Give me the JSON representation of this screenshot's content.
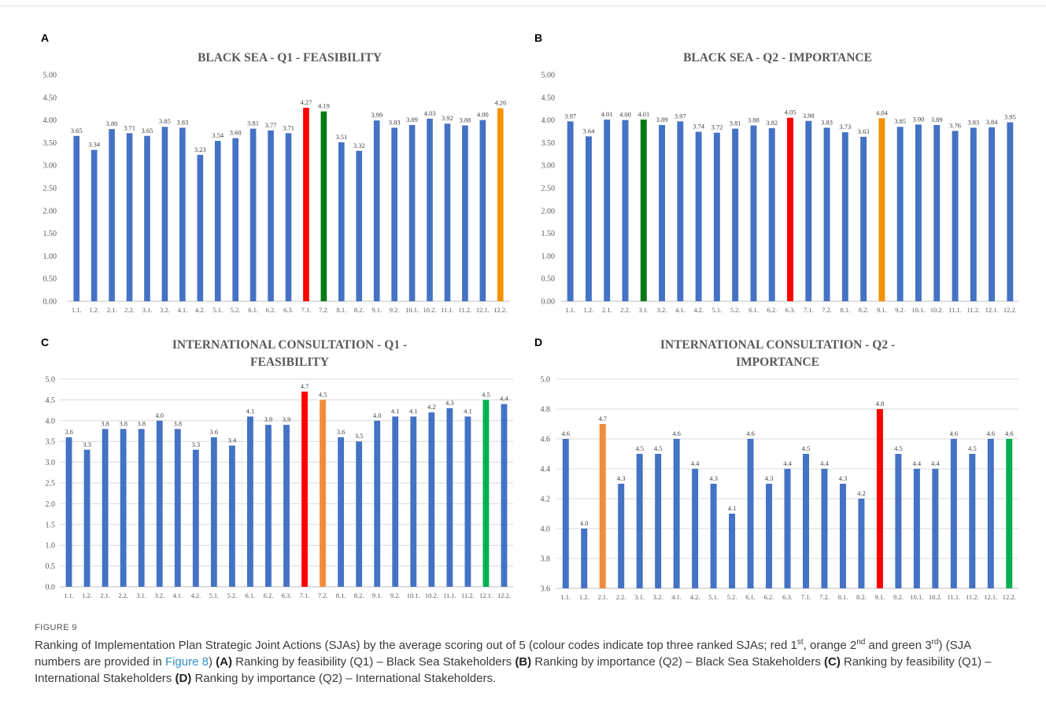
{
  "figure": {
    "label": "FIGURE 9",
    "caption_parts": [
      {
        "t": "Ranking of Implementation Plan Strategic Joint Actions (SJAs) by the average scoring out of 5 (colour codes indicate top three ranked SJAs; red 1"
      },
      {
        "t": "st",
        "s": "sup"
      },
      {
        "t": ", orange 2"
      },
      {
        "t": "nd",
        "s": "sup"
      },
      {
        "t": " and green 3"
      },
      {
        "t": "rd",
        "s": "sup"
      },
      {
        "t": ") (SJA numbers are provided in "
      },
      {
        "t": "Figure 8",
        "s": "link"
      },
      {
        "t": ") "
      },
      {
        "t": "(A)",
        "s": "b"
      },
      {
        "t": " Ranking by feasibility (Q1) – Black Sea Stakeholders "
      },
      {
        "t": "(B)",
        "s": "b"
      },
      {
        "t": " Ranking by importance (Q2) – Black Sea Stakeholders "
      },
      {
        "t": "(C)",
        "s": "b"
      },
      {
        "t": " Ranking by feasibility (Q1) – International Stakeholders "
      },
      {
        "t": "(D)",
        "s": "b"
      },
      {
        "t": " Ranking by importance (Q2) – International Stakeholders."
      }
    ]
  },
  "colors": {
    "bar": "#4472c4",
    "first": "#ff0000",
    "second_orange": "#f39200",
    "second_orange_light": "#f28b3c",
    "third_green_dark": "#007a14",
    "third_green": "#00b050",
    "axis_text": "#595959",
    "gridline": "#d9d9d9"
  },
  "chart_data": [
    {
      "type": "bar",
      "panel": "A",
      "title_lines": [
        "BLACK SEA - Q1 - FEASIBILITY"
      ],
      "categories": [
        "1.1.",
        "1.2.",
        "2.1.",
        "2.2.",
        "3.1.",
        "3.2.",
        "4.1.",
        "4.2.",
        "5.1.",
        "5.2.",
        "6.1.",
        "6.2.",
        "6.3.",
        "7.1.",
        "7.2.",
        "8.1.",
        "8.2.",
        "9.1.",
        "9.2.",
        "10.1.",
        "10.2.",
        "11.1.",
        "11.2.",
        "12.1.",
        "12.2."
      ],
      "values": [
        3.65,
        3.34,
        3.8,
        3.71,
        3.65,
        3.85,
        3.83,
        3.23,
        3.54,
        3.6,
        3.81,
        3.77,
        3.71,
        4.27,
        4.19,
        3.51,
        3.32,
        3.99,
        3.83,
        3.89,
        4.03,
        3.92,
        3.88,
        4.0,
        4.26
      ],
      "value_labels": [
        "3.65",
        "3.34",
        "3.80",
        "3.71",
        "3.65",
        "3.85",
        "3.83",
        "3.23",
        "3.54",
        "3.60",
        "3.81",
        "3.77",
        "3.71",
        "4.27",
        "4.19",
        "3.51",
        "3.32",
        "3.99",
        "3.83",
        "3.89",
        "4.03",
        "3.92",
        "3.88",
        "4.00",
        "4.26"
      ],
      "bar_colors": [
        "bar",
        "bar",
        "bar",
        "bar",
        "bar",
        "bar",
        "bar",
        "bar",
        "bar",
        "bar",
        "bar",
        "bar",
        "bar",
        "first",
        "third_green_dark",
        "bar",
        "bar",
        "bar",
        "bar",
        "bar",
        "bar",
        "bar",
        "bar",
        "bar",
        "second_orange"
      ],
      "ylim": [
        0,
        5
      ],
      "yticks": [
        "0.00",
        "0.50",
        "1.00",
        "1.50",
        "2.00",
        "2.50",
        "3.00",
        "3.50",
        "4.00",
        "4.50",
        "5.00"
      ],
      "grid": false
    },
    {
      "type": "bar",
      "panel": "B",
      "title_lines": [
        "BLACK SEA - Q2 - IMPORTANCE"
      ],
      "categories": [
        "1.1.",
        "1.2.",
        "2.1.",
        "2.2.",
        "3.1.",
        "3.2.",
        "4.1.",
        "4.2.",
        "5.1.",
        "5.2.",
        "6.1.",
        "6.2.",
        "6.3.",
        "7.1.",
        "7.2.",
        "8.1.",
        "8.2.",
        "9.1.",
        "9.2.",
        "10.1.",
        "10.2.",
        "11.1.",
        "11.2.",
        "12.1.",
        "12.2."
      ],
      "values": [
        3.97,
        3.64,
        4.01,
        4.0,
        4.01,
        3.89,
        3.97,
        3.74,
        3.72,
        3.81,
        3.88,
        3.82,
        4.05,
        3.98,
        3.83,
        3.73,
        3.63,
        4.04,
        3.85,
        3.9,
        3.89,
        3.76,
        3.83,
        3.84,
        3.95
      ],
      "value_labels": [
        "3.97",
        "3.64",
        "4.01",
        "4.00",
        "4.01",
        "3.89",
        "3.97",
        "3.74",
        "3.72",
        "3.81",
        "3.88",
        "3.82",
        "4.05",
        "3.98",
        "3.83",
        "3.73",
        "3.63",
        "4.04",
        "3.85",
        "3.90",
        "3.89",
        "3.76",
        "3.83",
        "3.84",
        "3.95"
      ],
      "bar_colors": [
        "bar",
        "bar",
        "bar",
        "bar",
        "third_green_dark",
        "bar",
        "bar",
        "bar",
        "bar",
        "bar",
        "bar",
        "bar",
        "first",
        "bar",
        "bar",
        "bar",
        "bar",
        "second_orange",
        "bar",
        "bar",
        "bar",
        "bar",
        "bar",
        "bar",
        "bar"
      ],
      "ylim": [
        0,
        5
      ],
      "yticks": [
        "0.00",
        "0.50",
        "1.00",
        "1.50",
        "2.00",
        "2.50",
        "3.00",
        "3.50",
        "4.00",
        "4.50",
        "5.00"
      ],
      "grid": false
    },
    {
      "type": "bar",
      "panel": "C",
      "title_lines": [
        "INTERNATIONAL CONSULTATION - Q1 -",
        "FEASIBILITY"
      ],
      "categories": [
        "1.1.",
        "1.2.",
        "2.1.",
        "2.2.",
        "3.1.",
        "3.2.",
        "4.1.",
        "4.2.",
        "5.1.",
        "5.2.",
        "6.1.",
        "6.2.",
        "6.3.",
        "7.1.",
        "7.2.",
        "8.1.",
        "8.2.",
        "9.1.",
        "9.2.",
        "10.1.",
        "10.2.",
        "11.1.",
        "11.2.",
        "12.1.",
        "12.2."
      ],
      "values": [
        3.6,
        3.3,
        3.8,
        3.8,
        3.8,
        4.0,
        3.8,
        3.3,
        3.6,
        3.4,
        4.1,
        3.9,
        3.9,
        4.7,
        4.5,
        3.6,
        3.5,
        4.0,
        4.1,
        4.1,
        4.2,
        4.3,
        4.1,
        4.5,
        4.4
      ],
      "value_labels": [
        "3.6",
        "3.3",
        "3.8",
        "3.8",
        "3.8",
        "4.0",
        "3.8",
        "3.3",
        "3.6",
        "3.4",
        "4.1",
        "3.9",
        "3.9",
        "4.7",
        "4.5",
        "3.6",
        "3.5",
        "4.0",
        "4.1",
        "4.1",
        "4.2",
        "4.3",
        "4.1",
        "4.5",
        "4.4"
      ],
      "bar_colors": [
        "bar",
        "bar",
        "bar",
        "bar",
        "bar",
        "bar",
        "bar",
        "bar",
        "bar",
        "bar",
        "bar",
        "bar",
        "bar",
        "first",
        "second_orange_light",
        "bar",
        "bar",
        "bar",
        "bar",
        "bar",
        "bar",
        "bar",
        "bar",
        "third_green",
        "bar"
      ],
      "ylim": [
        0,
        5
      ],
      "yticks": [
        "0.0",
        "0.5",
        "1.0",
        "1.5",
        "2.0",
        "2.5",
        "3.0",
        "3.5",
        "4.0",
        "4.5",
        "5.0"
      ],
      "grid": true
    },
    {
      "type": "bar",
      "panel": "D",
      "title_lines": [
        "INTERNATIONAL CONSULTATION - Q2 -",
        "IMPORTANCE"
      ],
      "categories": [
        "1.1.",
        "1.2.",
        "2.1.",
        "2.2.",
        "3.1.",
        "3.2.",
        "4.1.",
        "4.2.",
        "5.1.",
        "5.2.",
        "6.1.",
        "6.2.",
        "6.3.",
        "7.1.",
        "7.2.",
        "8.1.",
        "8.2.",
        "9.1.",
        "9.2.",
        "10.1.",
        "10.2.",
        "11.1.",
        "11.2.",
        "12.1.",
        "12.2."
      ],
      "values": [
        4.6,
        4.0,
        4.7,
        4.3,
        4.5,
        4.5,
        4.6,
        4.4,
        4.3,
        4.1,
        4.6,
        4.3,
        4.4,
        4.5,
        4.4,
        4.3,
        4.2,
        4.8,
        4.5,
        4.4,
        4.4,
        4.6,
        4.5,
        4.6,
        4.6
      ],
      "value_labels": [
        "4.6",
        "4.0",
        "4.7",
        "4.3",
        "4.5",
        "4.5",
        "4.6",
        "4.4",
        "4.3",
        "4.1",
        "4.6",
        "4.3",
        "4.4",
        "4.5",
        "4.4",
        "4.3",
        "4.2",
        "4.8",
        "4.5",
        "4.4",
        "4.4",
        "4.6",
        "4.5",
        "4.6",
        "4.6"
      ],
      "bar_colors": [
        "bar",
        "bar",
        "second_orange_light",
        "bar",
        "bar",
        "bar",
        "bar",
        "bar",
        "bar",
        "bar",
        "bar",
        "bar",
        "bar",
        "bar",
        "bar",
        "bar",
        "bar",
        "first",
        "bar",
        "bar",
        "bar",
        "bar",
        "bar",
        "bar",
        "third_green"
      ],
      "ylim": [
        3.6,
        5.0
      ],
      "yticks": [
        "3.6",
        "3.8",
        "4.0",
        "4.2",
        "4.4",
        "4.6",
        "4.8",
        "5.0"
      ],
      "grid": true
    }
  ]
}
